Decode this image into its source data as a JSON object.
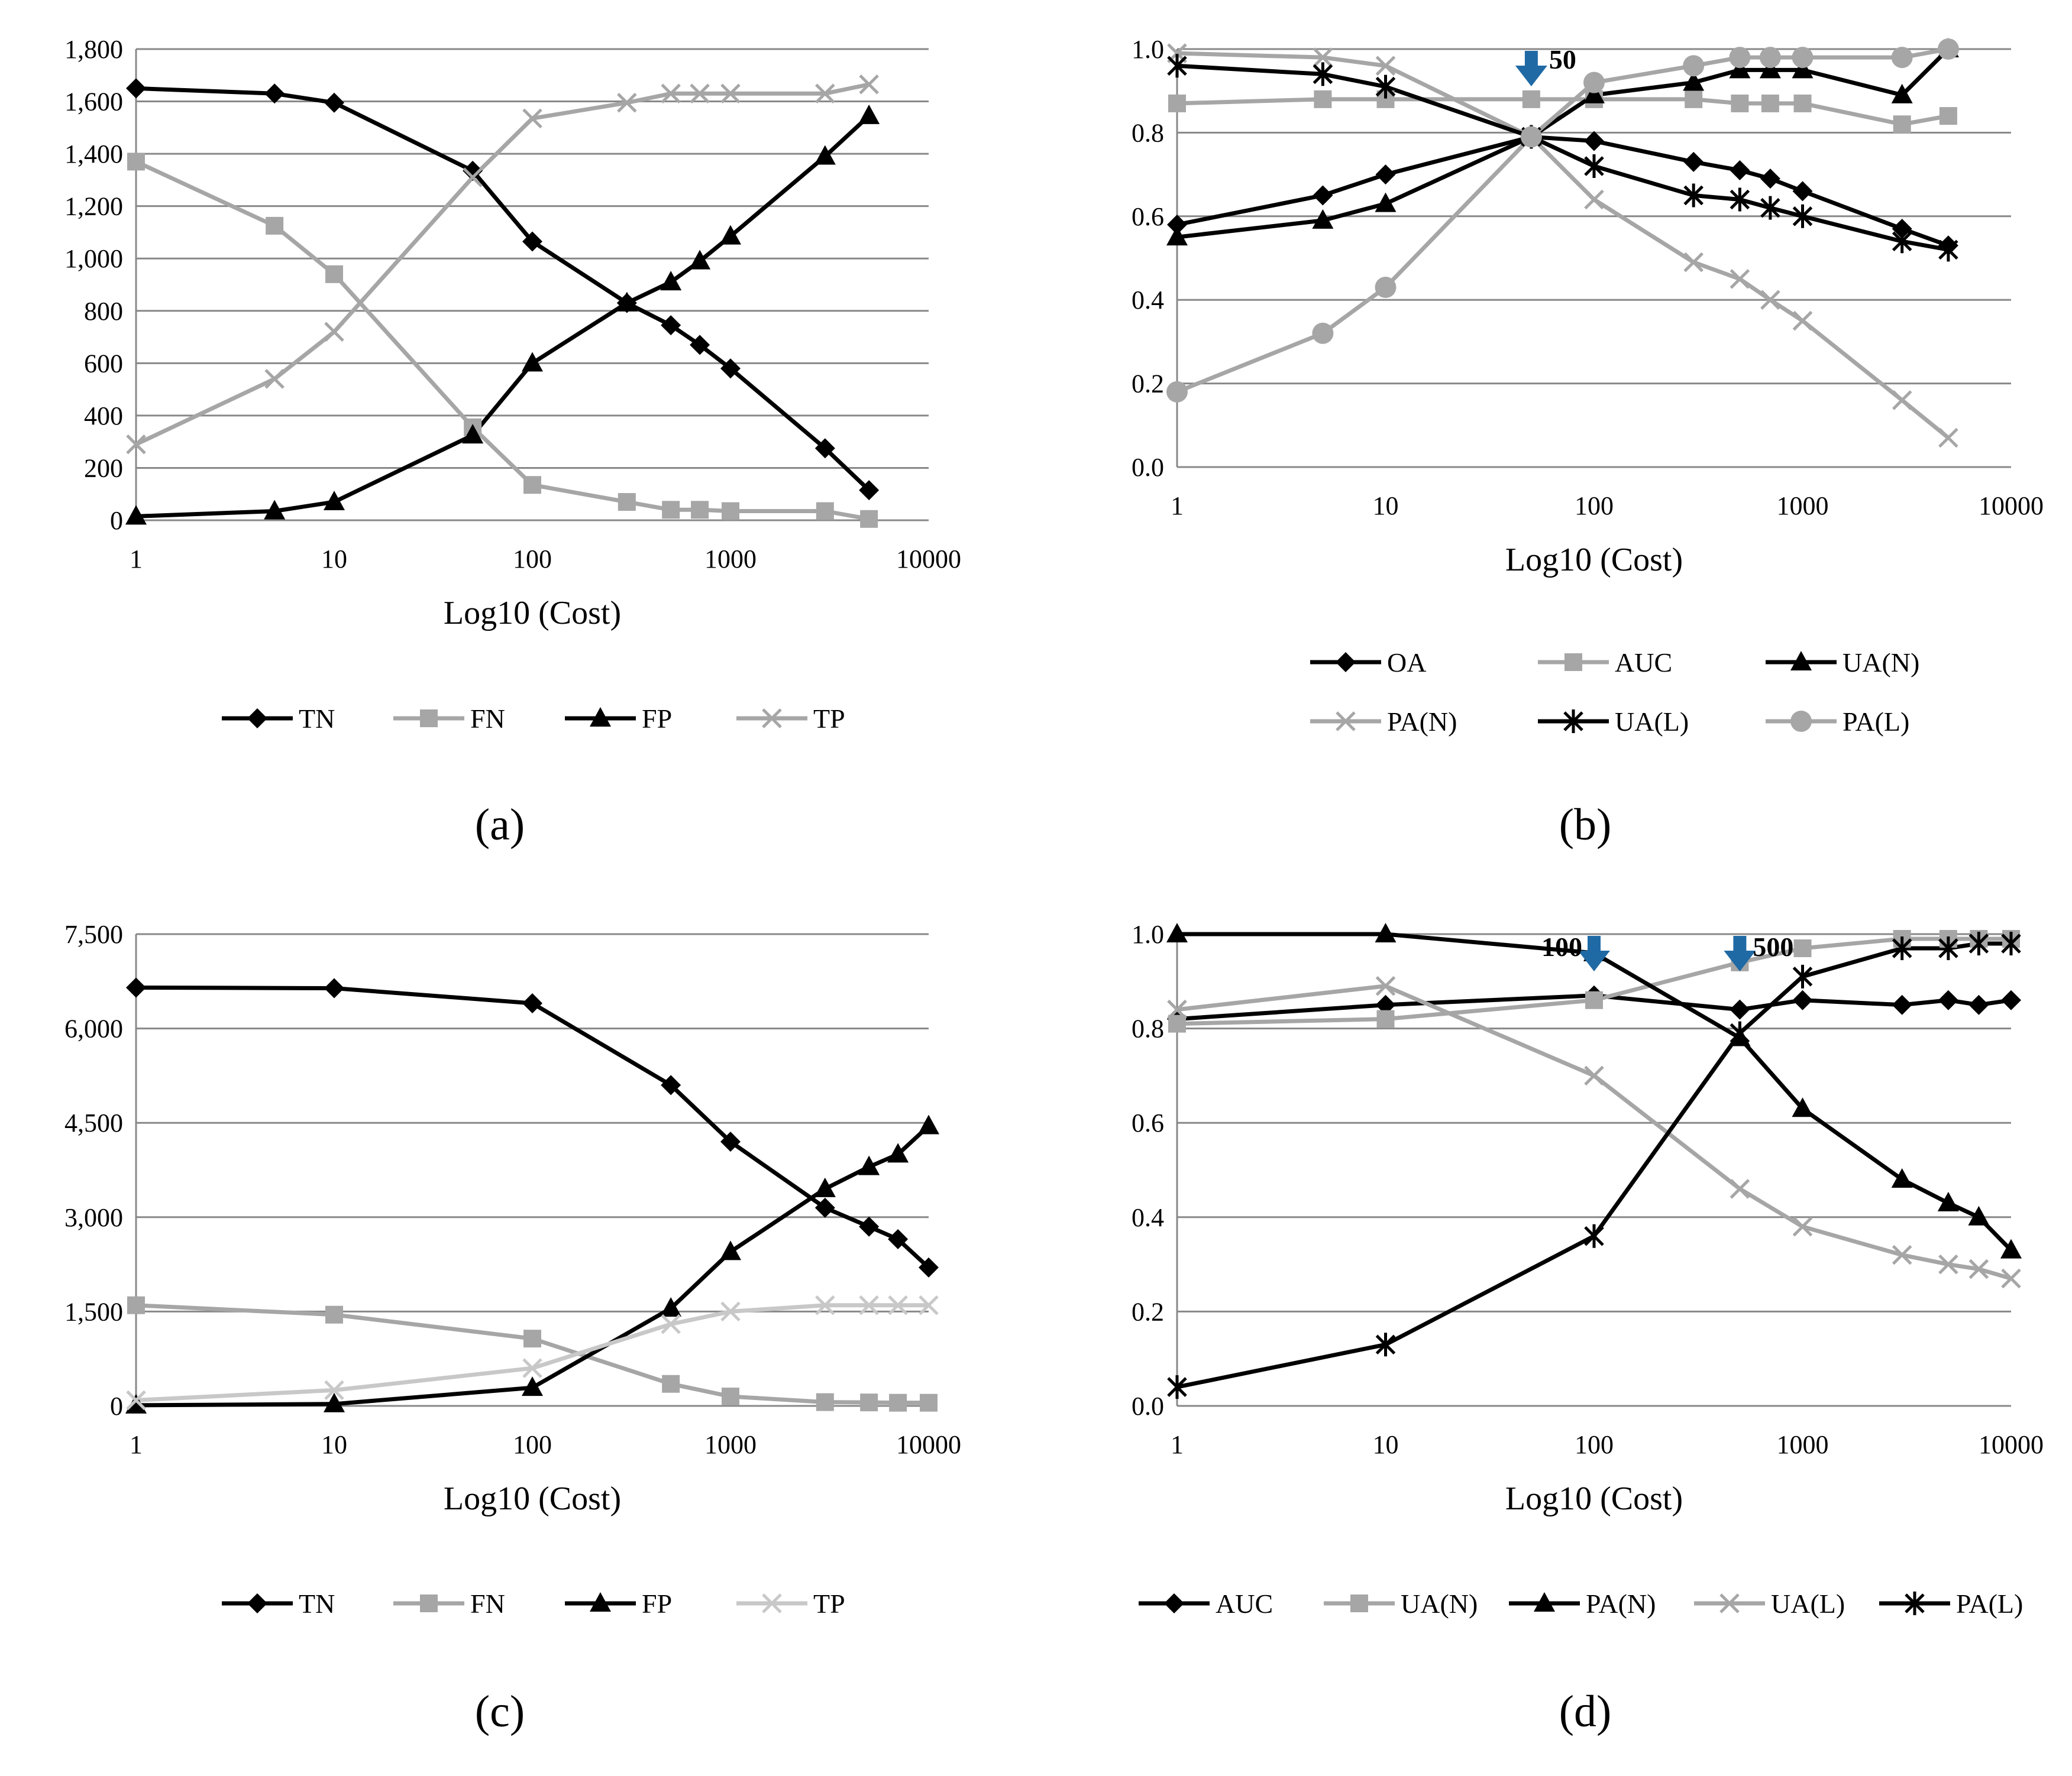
{
  "figure": {
    "panel_labels": [
      "(a)",
      "(b)",
      "(c)",
      "(d)"
    ]
  },
  "colors": {
    "black": "#000000",
    "gray": "#a6a6a6",
    "light_gray": "#c8c8c8",
    "grid": "#888888",
    "arrow": "#1f6aa5"
  },
  "chart_data": [
    {
      "id": "a",
      "type": "line",
      "label": "(a)",
      "xlabel": "Log10 (Cost)",
      "xscale": "log",
      "xlim": [
        1,
        10000
      ],
      "xticks": [
        1,
        10,
        100,
        1000,
        10000
      ],
      "ylim": [
        0,
        1800
      ],
      "yticks": [
        0,
        200,
        400,
        600,
        800,
        1000,
        1200,
        1400,
        1600,
        1800
      ],
      "ytick_labels": [
        "0",
        "200",
        "400",
        "600",
        "800",
        "1,000",
        "1,200",
        "1,400",
        "1,600",
        "1,800"
      ],
      "x": [
        1,
        5,
        10,
        50,
        100,
        300,
        500,
        700,
        1000,
        3000,
        5000
      ],
      "series": [
        {
          "name": "TN",
          "color": "#000000",
          "marker": "diamond",
          "values": [
            1650,
            1630,
            1595,
            1335,
            1065,
            830,
            745,
            670,
            580,
            275,
            115
          ]
        },
        {
          "name": "FN",
          "color": "#a6a6a6",
          "marker": "square",
          "values": [
            1370,
            1125,
            940,
            355,
            135,
            70,
            40,
            40,
            35,
            35,
            5
          ]
        },
        {
          "name": "FP",
          "color": "#000000",
          "marker": "triangle",
          "values": [
            15,
            35,
            70,
            325,
            600,
            830,
            910,
            990,
            1085,
            1390,
            1545
          ]
        },
        {
          "name": "TP",
          "color": "#a6a6a6",
          "marker": "x",
          "values": [
            290,
            540,
            720,
            1310,
            1535,
            1595,
            1630,
            1630,
            1630,
            1630,
            1665
          ]
        }
      ],
      "legend": [
        "TN",
        "FN",
        "FP",
        "TP"
      ],
      "legend_position": "bottom",
      "annotations": []
    },
    {
      "id": "b",
      "type": "line",
      "label": "(b)",
      "xlabel": "Log10 (Cost)",
      "xscale": "log",
      "xlim": [
        1,
        10000
      ],
      "xticks": [
        1,
        10,
        100,
        1000,
        10000
      ],
      "ylim": [
        0,
        1
      ],
      "yticks": [
        0,
        0.2,
        0.4,
        0.6,
        0.8,
        1.0
      ],
      "ytick_labels": [
        "0.0",
        "0.2",
        "0.4",
        "0.6",
        "0.8",
        "1.0"
      ],
      "x": [
        1,
        5,
        10,
        50,
        100,
        300,
        500,
        700,
        1000,
        3000,
        5000
      ],
      "series": [
        {
          "name": "OA",
          "color": "#000000",
          "marker": "diamond",
          "values": [
            0.58,
            0.65,
            0.7,
            0.79,
            0.78,
            0.73,
            0.71,
            0.69,
            0.66,
            0.57,
            0.53
          ]
        },
        {
          "name": "AUC",
          "color": "#a6a6a6",
          "marker": "square",
          "values": [
            0.87,
            0.88,
            0.88,
            0.88,
            0.88,
            0.88,
            0.87,
            0.87,
            0.87,
            0.82,
            0.84
          ]
        },
        {
          "name": "UA(N)",
          "color": "#000000",
          "marker": "triangle",
          "values": [
            0.55,
            0.59,
            0.63,
            0.79,
            0.89,
            0.92,
            0.95,
            0.95,
            0.95,
            0.89,
            1.0
          ]
        },
        {
          "name": "PA(N)",
          "color": "#a6a6a6",
          "marker": "x",
          "values": [
            0.99,
            0.98,
            0.96,
            0.79,
            0.64,
            0.49,
            0.45,
            0.4,
            0.35,
            0.16,
            0.07
          ]
        },
        {
          "name": "UA(L)",
          "color": "#000000",
          "marker": "star",
          "values": [
            0.96,
            0.94,
            0.91,
            0.79,
            0.72,
            0.65,
            0.64,
            0.62,
            0.6,
            0.54,
            0.52
          ]
        },
        {
          "name": "PA(L)",
          "color": "#a6a6a6",
          "marker": "circle",
          "values": [
            0.18,
            0.32,
            0.43,
            0.79,
            0.92,
            0.96,
            0.98,
            0.98,
            0.98,
            0.98,
            1.0
          ]
        }
      ],
      "legend": [
        "OA",
        "AUC",
        "UA(N)",
        "PA(N)",
        "UA(L)",
        "PA(L)"
      ],
      "legend_position": "bottom",
      "annotations": [
        {
          "text": "50",
          "x": 50
        }
      ]
    },
    {
      "id": "c",
      "type": "line",
      "label": "(c)",
      "xlabel": "Log10 (Cost)",
      "xscale": "log",
      "xlim": [
        1,
        10000
      ],
      "xticks": [
        1,
        10,
        100,
        1000,
        10000
      ],
      "ylim": [
        0,
        7500
      ],
      "yticks": [
        0,
        1500,
        3000,
        4500,
        6000,
        7500
      ],
      "ytick_labels": [
        "0",
        "1,500",
        "3,000",
        "4,500",
        "6,000",
        "7,500"
      ],
      "x": [
        1,
        10,
        100,
        500,
        1000,
        3000,
        5000,
        7000,
        10000
      ],
      "series": [
        {
          "name": "TN",
          "color": "#000000",
          "marker": "diamond",
          "values": [
            6650,
            6640,
            6400,
            5100,
            4200,
            3150,
            2850,
            2650,
            2200
          ]
        },
        {
          "name": "FN",
          "color": "#a6a6a6",
          "marker": "square",
          "values": [
            1600,
            1450,
            1070,
            350,
            150,
            60,
            55,
            50,
            50
          ]
        },
        {
          "name": "FP",
          "color": "#000000",
          "marker": "triangle",
          "values": [
            10,
            30,
            290,
            1550,
            2450,
            3450,
            3800,
            4000,
            4450
          ]
        },
        {
          "name": "TP",
          "color": "#c8c8c8",
          "marker": "x",
          "values": [
            90,
            250,
            600,
            1300,
            1500,
            1600,
            1600,
            1600,
            1600
          ]
        }
      ],
      "legend": [
        "TN",
        "FN",
        "FP",
        "TP"
      ],
      "legend_position": "bottom",
      "annotations": []
    },
    {
      "id": "d",
      "type": "line",
      "label": "(d)",
      "xlabel": "Log10 (Cost)",
      "xscale": "log",
      "xlim": [
        1,
        10000
      ],
      "xticks": [
        1,
        10,
        100,
        1000,
        10000
      ],
      "ylim": [
        0,
        1
      ],
      "yticks": [
        0,
        0.2,
        0.4,
        0.6,
        0.8,
        1.0
      ],
      "ytick_labels": [
        "0.0",
        "0.2",
        "0.4",
        "0.6",
        "0.8",
        "1.0"
      ],
      "x": [
        1,
        10,
        100,
        500,
        1000,
        3000,
        5000,
        7000,
        10000
      ],
      "series": [
        {
          "name": "AUC",
          "color": "#000000",
          "marker": "diamond",
          "values": [
            0.82,
            0.85,
            0.87,
            0.84,
            0.86,
            0.85,
            0.86,
            0.85,
            0.86
          ]
        },
        {
          "name": "UA(N)",
          "color": "#a6a6a6",
          "marker": "square",
          "values": [
            0.81,
            0.82,
            0.86,
            0.94,
            0.97,
            0.99,
            0.99,
            0.99,
            0.99
          ]
        },
        {
          "name": "PA(N)",
          "color": "#000000",
          "marker": "triangle",
          "values": [
            1.0,
            1.0,
            0.96,
            0.78,
            0.63,
            0.48,
            0.43,
            0.4,
            0.33
          ]
        },
        {
          "name": "UA(L)",
          "color": "#a6a6a6",
          "marker": "x",
          "values": [
            0.84,
            0.89,
            0.7,
            0.46,
            0.38,
            0.32,
            0.3,
            0.29,
            0.27
          ]
        },
        {
          "name": "PA(L)",
          "color": "#000000",
          "marker": "star",
          "values": [
            0.04,
            0.13,
            0.36,
            0.79,
            0.91,
            0.97,
            0.97,
            0.98,
            0.98
          ]
        }
      ],
      "legend": [
        "AUC",
        "UA(N)",
        "PA(N)",
        "UA(L)",
        "PA(L)"
      ],
      "legend_position": "bottom",
      "annotations": [
        {
          "text": "100",
          "x": 100
        },
        {
          "text": "500",
          "x": 500
        }
      ]
    }
  ]
}
